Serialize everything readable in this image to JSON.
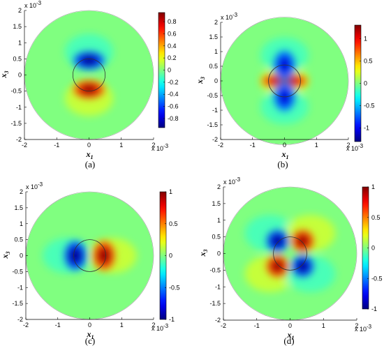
{
  "chart_data": [
    {
      "type": "heatmap",
      "panel": "a",
      "caption": "(a)",
      "xlabel": "x",
      "xlabel_sub": "1",
      "ylabel": "x",
      "ylabel_sub": "3",
      "x_exponent": "x 10",
      "y_exponent": "x 10",
      "exponent_power": "-3",
      "xlim": [
        -2,
        2
      ],
      "ylim": [
        -2,
        2
      ],
      "xticks": [
        "-2",
        "-1",
        "0",
        "1",
        "2"
      ],
      "yticks": [
        "2",
        "1.5",
        "1",
        "0.5",
        "0",
        "-0.5",
        "-1",
        "-1.5",
        "-2"
      ],
      "inner_circle_radius": 0.5,
      "outer_circle_radius": 2,
      "clim": [
        -0.95,
        0.95
      ],
      "colorbar_ticks": [
        "0.8",
        "0.6",
        "0.4",
        "0.2",
        "0",
        "-0.2",
        "-0.4",
        "-0.6",
        "-0.8"
      ],
      "colorbar_tick_values": [
        0.8,
        0.6,
        0.4,
        0.2,
        0,
        -0.2,
        -0.4,
        -0.6,
        -0.8
      ],
      "pattern": "dipole-vertical",
      "features": [
        {
          "x": 0,
          "y": 0.45,
          "value": -0.95
        },
        {
          "x": 0,
          "y": -0.45,
          "value": 0.95
        }
      ]
    },
    {
      "type": "heatmap",
      "panel": "b",
      "caption": "(b)",
      "xlabel": "x",
      "xlabel_sub": "1",
      "ylabel": "x",
      "ylabel_sub": "3",
      "x_exponent": "x 10",
      "y_exponent": "x 10",
      "exponent_power": "-3",
      "xlim": [
        -2,
        2
      ],
      "ylim": [
        -2,
        2
      ],
      "xticks": [
        "-2",
        "-1",
        "0",
        "1",
        "2"
      ],
      "yticks": [
        "2",
        "1.5",
        "1",
        "0.5",
        "0",
        "-0.5",
        "-1",
        "-1.5",
        "-2"
      ],
      "inner_circle_radius": 0.5,
      "outer_circle_radius": 2,
      "clim": [
        -1.3,
        1.3
      ],
      "colorbar_ticks": [
        "1",
        "0.5",
        "0",
        "-0.5",
        "-1"
      ],
      "colorbar_tick_values": [
        1,
        0.5,
        0,
        -0.5,
        -1
      ],
      "pattern": "quadrupole-axial",
      "features": [
        {
          "x": 0,
          "y": 0,
          "value": 1.3
        },
        {
          "x": 0,
          "y": 0.55,
          "value": -1.1
        },
        {
          "x": 0,
          "y": -0.55,
          "value": -1.1
        }
      ]
    },
    {
      "type": "heatmap",
      "panel": "c",
      "caption": "(c)",
      "xlabel": "x",
      "xlabel_sub": "1",
      "ylabel": "x",
      "ylabel_sub": "3",
      "x_exponent": "x 10",
      "y_exponent": "x 10",
      "exponent_power": "-3",
      "xlim": [
        -2,
        2
      ],
      "ylim": [
        -2,
        2
      ],
      "xticks": [
        "-2",
        "-1",
        "0",
        "1",
        "2"
      ],
      "yticks": [
        "2",
        "1.5",
        "1",
        "0.5",
        "0",
        "-0.5",
        "-1",
        "-1.5",
        "-2"
      ],
      "inner_circle_radius": 0.5,
      "outer_circle_radius": 2,
      "clim": [
        -1,
        1
      ],
      "colorbar_ticks": [
        "1",
        "0.5",
        "0",
        "-0.5",
        "-1"
      ],
      "colorbar_tick_values": [
        1,
        0.5,
        0,
        -0.5,
        -1
      ],
      "pattern": "dipole-horizontal",
      "features": [
        {
          "x": -0.45,
          "y": 0,
          "value": -1
        },
        {
          "x": 0.45,
          "y": 0,
          "value": 1
        }
      ]
    },
    {
      "type": "heatmap",
      "panel": "d",
      "caption": "(d)",
      "xlabel": "x",
      "xlabel_sub": "1",
      "ylabel": "x",
      "ylabel_sub": "3",
      "x_exponent": "x 10",
      "y_exponent": "x 10",
      "exponent_power": "-3",
      "xlim": [
        -2,
        2
      ],
      "ylim": [
        -2,
        2
      ],
      "xticks": [
        "-2",
        "-1",
        "0",
        "1",
        "2"
      ],
      "yticks": [
        "2",
        "1.5",
        "1",
        "0.5",
        "0",
        "-0.5",
        "-1",
        "-1.5",
        "-2"
      ],
      "inner_circle_radius": 0.5,
      "outer_circle_radius": 2,
      "clim": [
        -1,
        1
      ],
      "colorbar_ticks": [
        "1",
        "0.5",
        "0",
        "-0.5",
        "-1"
      ],
      "colorbar_tick_values": [
        1,
        0.5,
        0,
        -0.5,
        -1
      ],
      "pattern": "quadrupole-diagonal",
      "features": [
        {
          "x": -0.38,
          "y": 0.38,
          "value": -1
        },
        {
          "x": 0.38,
          "y": 0.38,
          "value": 1
        },
        {
          "x": -0.38,
          "y": -0.38,
          "value": 1
        },
        {
          "x": 0.38,
          "y": -0.38,
          "value": -1
        }
      ]
    }
  ]
}
